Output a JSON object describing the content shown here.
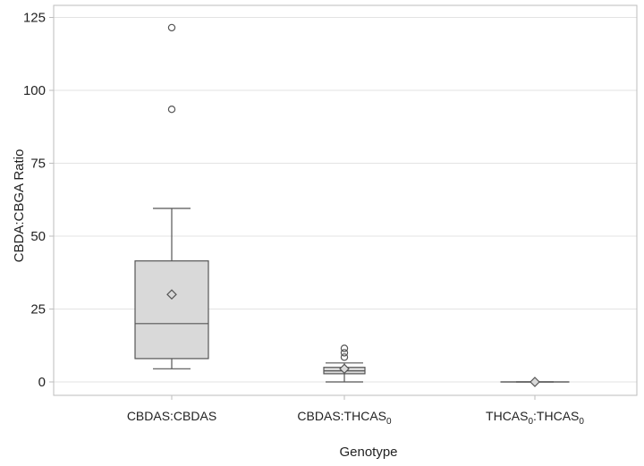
{
  "chart_data": {
    "type": "box",
    "xlabel": "Genotype",
    "ylabel": "CBDA:CBGA Ratio",
    "ylim": [
      -5,
      130
    ],
    "yticks": [
      0,
      25,
      50,
      75,
      100,
      125
    ],
    "grid": "horizontal",
    "categories": [
      {
        "main": "CBDAS:CBDAS",
        "mid_sub": "",
        "tail": "",
        "tail_sub": ""
      },
      {
        "main": "CBDAS:THCAS",
        "mid_sub": "0",
        "tail": "",
        "tail_sub": ""
      },
      {
        "main": "THCAS",
        "mid_sub": "0",
        "tail": ":THCAS",
        "tail_sub": "0"
      }
    ],
    "boxes": [
      {
        "whisker_low": 4.5,
        "q1": 8,
        "median": 20,
        "q3": 41.5,
        "whisker_high": 59.5,
        "mean": 30,
        "outliers": [
          93.5,
          121.5
        ]
      },
      {
        "whisker_low": 0,
        "q1": 2.8,
        "median": 3.8,
        "q3": 5,
        "whisker_high": 6.5,
        "mean": 4.5,
        "outliers": [
          8.5,
          10,
          11.5
        ]
      },
      {
        "whisker_low": 0,
        "q1": 0,
        "median": 0,
        "q3": 0,
        "whisker_high": 0,
        "mean": 0,
        "outliers": []
      }
    ],
    "colors": {
      "box_fill": "#d9d9d9",
      "stroke": "#555555",
      "grid": "#e3e3e3",
      "frame": "#bdbdbd"
    }
  }
}
